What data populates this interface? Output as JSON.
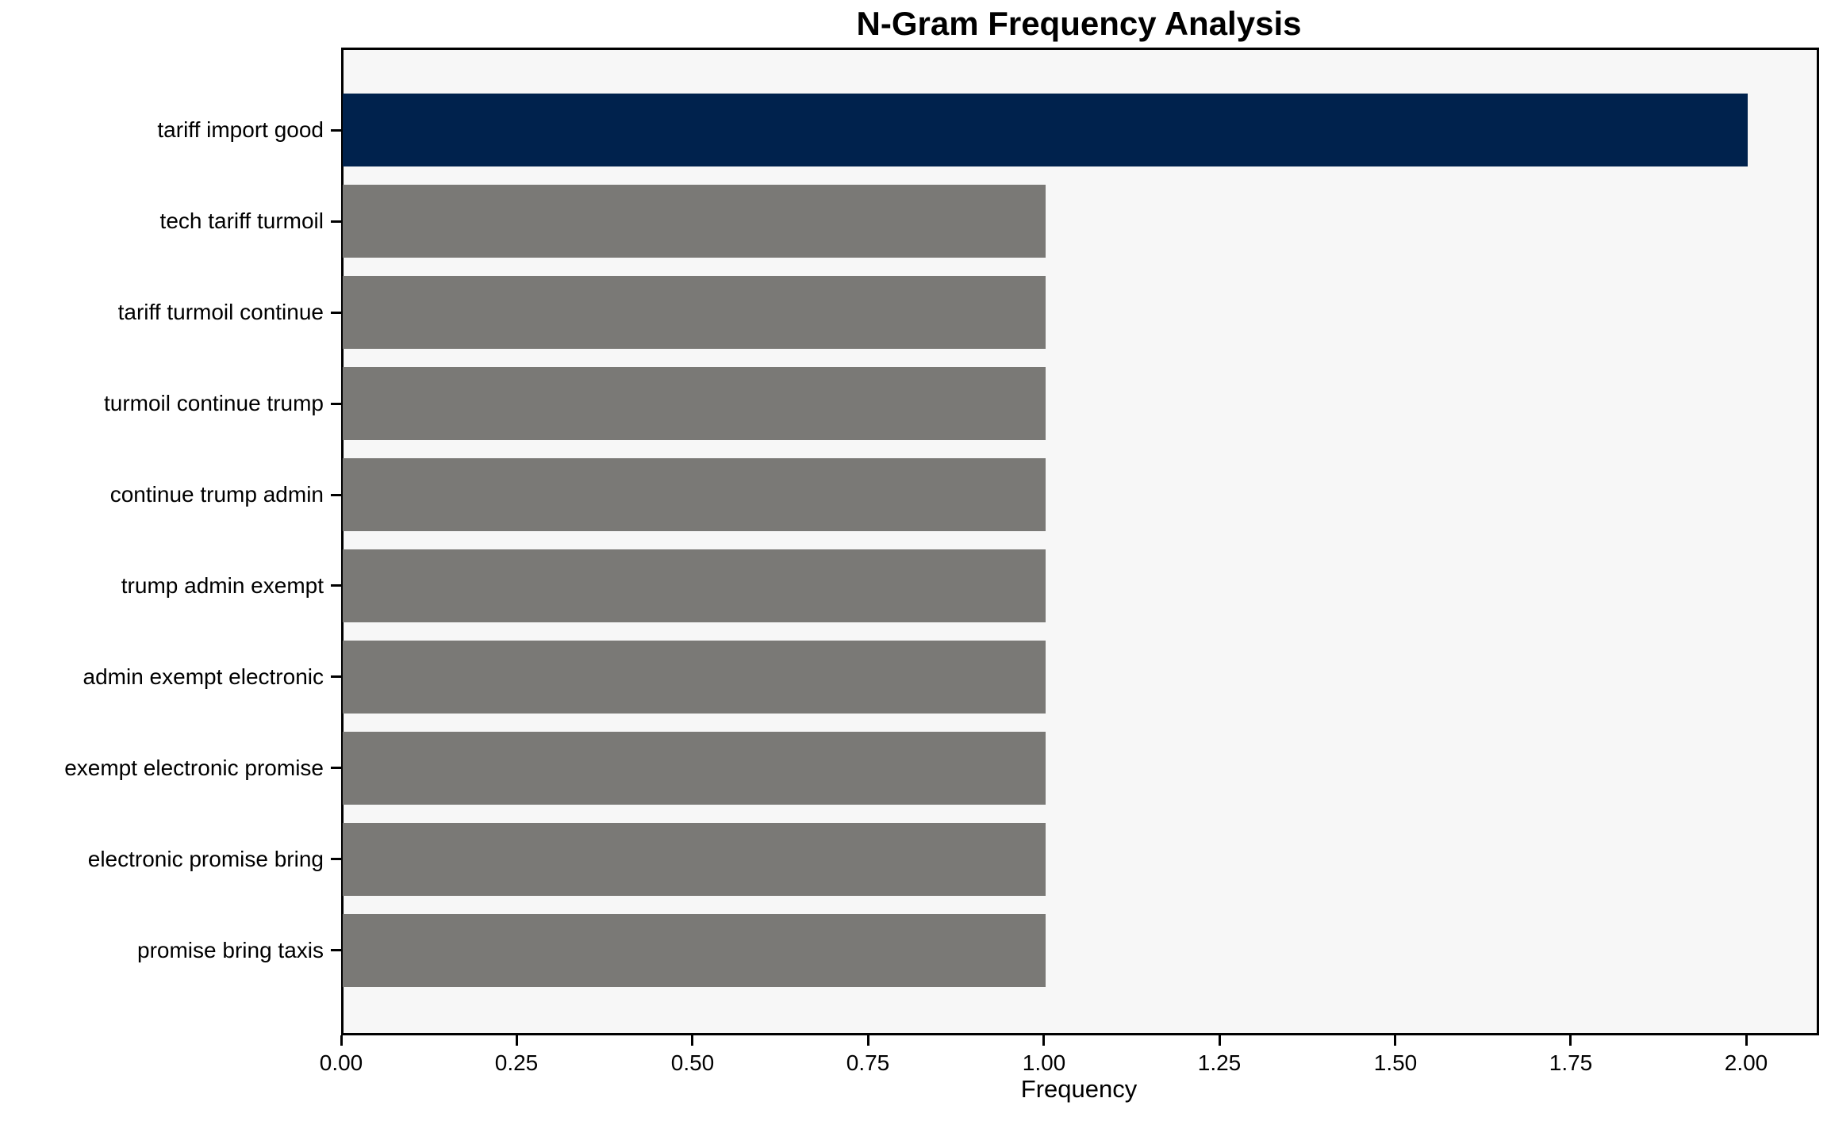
{
  "chart_data": {
    "type": "bar",
    "orientation": "horizontal",
    "title": "N-Gram Frequency Analysis",
    "xlabel": "Frequency",
    "ylabel": "",
    "categories": [
      "tariff import good",
      "tech tariff turmoil",
      "tariff turmoil continue",
      "turmoil continue trump",
      "continue trump admin",
      "trump admin exempt",
      "admin exempt electronic",
      "exempt electronic promise",
      "electronic promise bring",
      "promise bring taxis"
    ],
    "values": [
      2,
      1,
      1,
      1,
      1,
      1,
      1,
      1,
      1,
      1
    ],
    "bar_colors": [
      "#00224d",
      "#7a7976",
      "#7a7976",
      "#7a7976",
      "#7a7976",
      "#7a7976",
      "#7a7976",
      "#7a7976",
      "#7a7976",
      "#7a7976"
    ],
    "xlim": [
      0,
      2.1
    ],
    "xticks": [
      0,
      0.25,
      0.5,
      0.75,
      1,
      1.25,
      1.5,
      1.75,
      2
    ],
    "xtick_labels": [
      "0.00",
      "0.25",
      "0.50",
      "0.75",
      "1.00",
      "1.25",
      "1.50",
      "1.75",
      "2.00"
    ],
    "grid": false,
    "legend": null,
    "colors": {
      "highlight_bar": "#00224d",
      "default_bar": "#7a7976",
      "plot_background": "#f7f7f7",
      "figure_background": "#ffffff",
      "frame": "#000000",
      "text": "#000000"
    }
  }
}
